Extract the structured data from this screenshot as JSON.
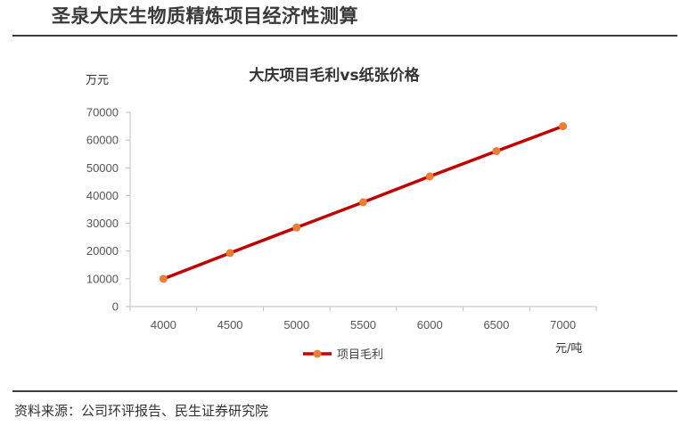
{
  "header": {
    "title": "圣泉大庆生物质精炼项目经济性测算"
  },
  "source": "资料来源：公司环评报告、民生证券研究院",
  "colors": {
    "line": "#c00000",
    "marker": "#ed7d31",
    "axis": "#bfbfbf",
    "rule": "#3c3c3c"
  },
  "chart_data": {
    "type": "line",
    "title": "大庆项目毛利vs纸张价格",
    "ylabel": "万元",
    "xlabel": "元/吨",
    "x": [
      4000,
      4500,
      5000,
      5500,
      6000,
      6500,
      7000
    ],
    "series": [
      {
        "name": "项目毛利",
        "values": [
          10000,
          19300,
          28500,
          37600,
          46900,
          56000,
          65000
        ]
      }
    ],
    "ylim": [
      0,
      70000
    ],
    "yticks": [
      0,
      10000,
      20000,
      30000,
      40000,
      50000,
      60000,
      70000
    ],
    "grid": false,
    "legend": "bottom"
  }
}
